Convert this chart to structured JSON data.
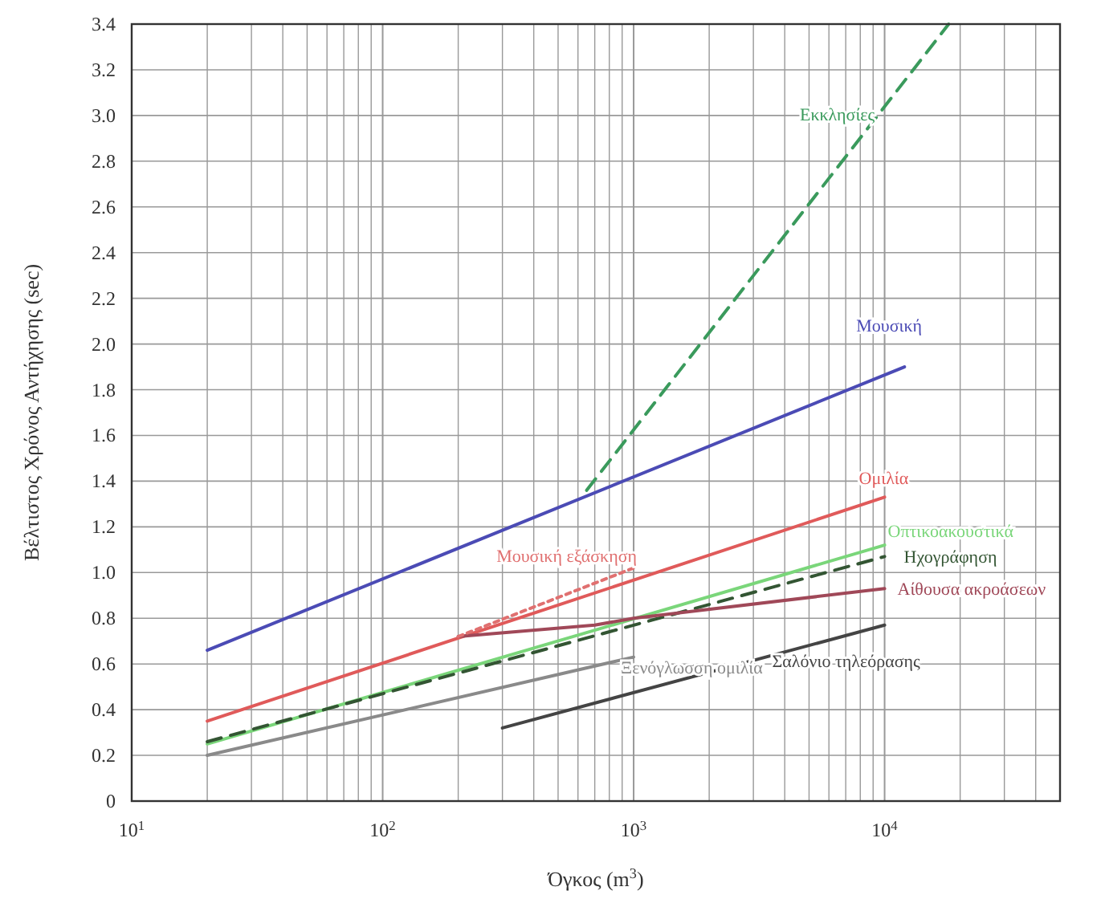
{
  "chart_data": {
    "type": "line",
    "xlabel": "Όγκος (m$^{3}$)",
    "ylabel": "Βέλτιστος Χρόνος Αντήχησης (sec)",
    "log": "x",
    "grid": true,
    "marker": "none",
    "xlim": [
      10,
      50000
    ],
    "xticks": [
      {
        "value": 10,
        "label": "10$^{1}$"
      },
      {
        "value": 20,
        "label": null
      },
      {
        "value": 30,
        "label": null
      },
      {
        "value": 40,
        "label": null
      },
      {
        "value": 50,
        "label": null
      },
      {
        "value": 60,
        "label": null
      },
      {
        "value": 70,
        "label": null
      },
      {
        "value": 80,
        "label": null
      },
      {
        "value": 90,
        "label": null
      },
      {
        "value": 100,
        "label": "10$^{2}$"
      },
      {
        "value": 200,
        "label": null
      },
      {
        "value": 300,
        "label": null
      },
      {
        "value": 400,
        "label": null
      },
      {
        "value": 500,
        "label": null
      },
      {
        "value": 600,
        "label": null
      },
      {
        "value": 700,
        "label": null
      },
      {
        "value": 800,
        "label": null
      },
      {
        "value": 900,
        "label": null
      },
      {
        "value": 1000,
        "label": "10$^{3}$"
      },
      {
        "value": 2000,
        "label": null
      },
      {
        "value": 3000,
        "label": null
      },
      {
        "value": 4000,
        "label": null
      },
      {
        "value": 5000,
        "label": null
      },
      {
        "value": 6000,
        "label": null
      },
      {
        "value": 7000,
        "label": null
      },
      {
        "value": 8000,
        "label": null
      },
      {
        "value": 9000,
        "label": null
      },
      {
        "value": 10000,
        "label": "10$^{4}$"
      },
      {
        "value": 20000,
        "label": null
      },
      {
        "value": 30000,
        "label": null
      },
      {
        "value": 40000,
        "label": null
      }
    ],
    "ylim": [
      0,
      3.4
    ],
    "yticks": [
      0,
      0.2,
      0.4,
      0.6,
      0.8,
      {
        "value": 1,
        "label": "1.0"
      },
      1.2,
      1.4,
      1.6,
      1.8,
      {
        "value": 2,
        "label": "2.0"
      },
      2.2,
      2.4,
      2.6,
      2.8,
      {
        "value": 3,
        "label": "3.0"
      },
      3.2,
      3.4
    ],
    "series": [
      {
        "name": "Εκκλησίες",
        "color": "#3a9a5c",
        "line_style": "dashed",
        "x": [
          650,
          18000
        ],
        "values": [
          1.36,
          3.4
        ]
      },
      {
        "name": "Μουσική",
        "color": "#4b4bb5",
        "x": [
          20,
          12000
        ],
        "values": [
          0.66,
          1.9
        ]
      },
      {
        "name": "Ομιλία",
        "color": "#e05a5a",
        "x": [
          20,
          10000
        ],
        "values": [
          0.35,
          1.33
        ]
      },
      {
        "name": "Οπτικοακουστικά",
        "color": "#7ad67a",
        "x": [
          20,
          10000
        ],
        "values": [
          0.25,
          1.12
        ]
      },
      {
        "name": "Ηχογράφηση",
        "color": "#335533",
        "line_style": "dashed",
        "x": [
          20,
          10000
        ],
        "values": [
          0.26,
          1.07
        ]
      },
      {
        "name": "Αίθουσα ακροάσεων",
        "color": "#a04858",
        "x": [
          200,
          700,
          1000,
          10000
        ],
        "values": [
          0.72,
          0.77,
          0.8,
          0.93
        ]
      },
      {
        "name": "Ξενόγλωσση ομιλία",
        "color": "#8a8a8a",
        "x": [
          20,
          1000
        ],
        "values": [
          0.2,
          0.63
        ]
      },
      {
        "name": "Σαλόνιο τηλεόρασης",
        "color": "#444444",
        "x": [
          300,
          10000
        ],
        "values": [
          0.32,
          0.77
        ]
      },
      {
        "name": "Μουσική εξάσκηση",
        "color": "#e07070",
        "line_style": "dotted",
        "x": [
          200,
          1000
        ],
        "values": [
          0.72,
          1.02
        ]
      }
    ]
  }
}
